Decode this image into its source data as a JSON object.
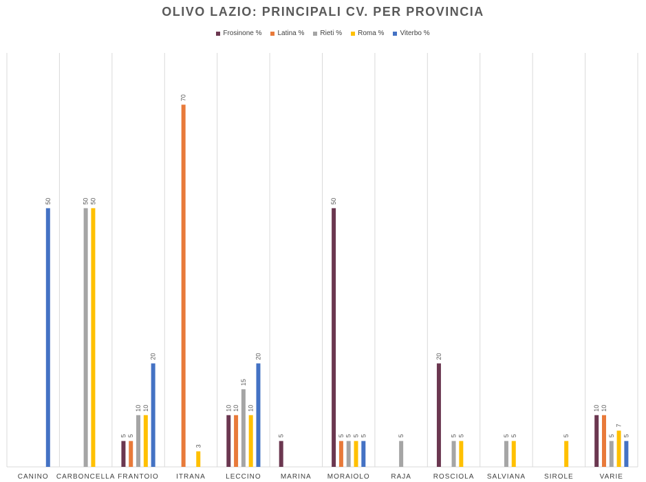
{
  "chart_data": {
    "type": "bar",
    "title": "OLIVO LAZIO: PRINCIPALI CV. PER PROVINCIA",
    "xlabel": "",
    "ylabel": "",
    "ylim": [
      0,
      80
    ],
    "grid": "vertical separators between categories",
    "legend_position": "top",
    "categories": [
      "CANINO",
      "CARBONCELLA",
      "FRANTOIO",
      "ITRANA",
      "LECCINO",
      "MARINA",
      "MORAIOLO",
      "RAJA",
      "ROSCIOLA",
      "SALVIANA",
      "SIROLE",
      "VARIE"
    ],
    "series": [
      {
        "name": "Frosinone %",
        "color": "#6b3750",
        "values": [
          null,
          null,
          5,
          null,
          10,
          5,
          50,
          null,
          20,
          null,
          null,
          10
        ]
      },
      {
        "name": "Latina %",
        "color": "#e87a3a",
        "values": [
          null,
          null,
          5,
          70,
          10,
          null,
          5,
          null,
          null,
          null,
          null,
          10
        ]
      },
      {
        "name": "Rieti %",
        "color": "#a5a5a5",
        "values": [
          null,
          50,
          10,
          null,
          15,
          null,
          5,
          5,
          5,
          5,
          null,
          5
        ]
      },
      {
        "name": "Roma %",
        "color": "#ffc000",
        "values": [
          null,
          50,
          10,
          3,
          10,
          null,
          5,
          null,
          5,
          5,
          5,
          7
        ]
      },
      {
        "name": "Viterbo %",
        "color": "#4472c4",
        "values": [
          50,
          null,
          20,
          null,
          20,
          null,
          5,
          null,
          null,
          null,
          null,
          5
        ]
      }
    ]
  }
}
